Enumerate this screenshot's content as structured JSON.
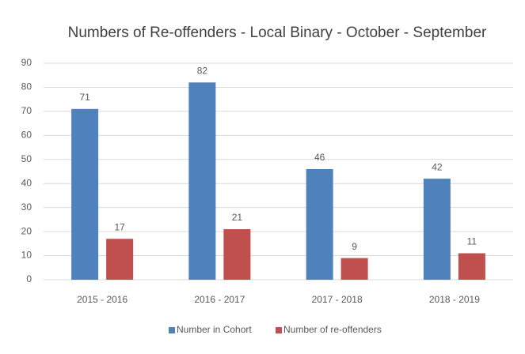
{
  "chart_data": {
    "type": "bar",
    "title": "Numbers of Re-offenders - Local Binary - October - September",
    "categories": [
      "2015 - 2016",
      "2016 - 2017",
      "2017 - 2018",
      "2018 - 2019"
    ],
    "series": [
      {
        "name": "Number in Cohort",
        "color": "#4f81bd",
        "values": [
          71,
          82,
          46,
          42
        ]
      },
      {
        "name": "Number of re-offenders",
        "color": "#c0504d",
        "values": [
          17,
          21,
          9,
          11
        ]
      }
    ],
    "ylim": [
      0,
      90
    ],
    "yticks": [
      0,
      10,
      20,
      30,
      40,
      50,
      60,
      70,
      80,
      90
    ],
    "grid": true,
    "legend": "bottom"
  }
}
